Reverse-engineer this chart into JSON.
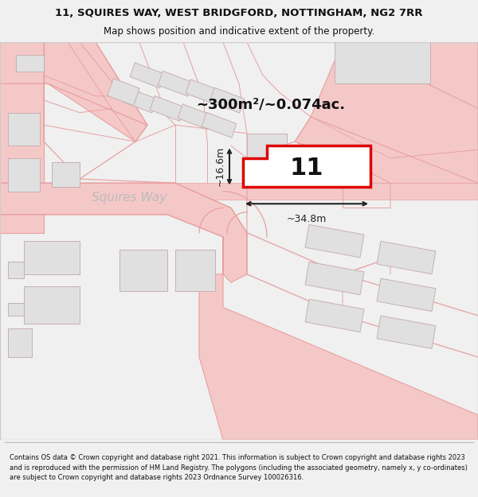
{
  "title_line1": "11, SQUIRES WAY, WEST BRIDGFORD, NOTTINGHAM, NG2 7RR",
  "title_line2": "Map shows position and indicative extent of the property.",
  "footer_text": "Contains OS data © Crown copyright and database right 2021. This information is subject to Crown copyright and database rights 2023 and is reproduced with the permission of HM Land Registry. The polygons (including the associated geometry, namely x, y co-ordinates) are subject to Crown copyright and database rights 2023 Ordnance Survey 100026316.",
  "area_label": "~300m²/~0.074ac.",
  "width_label": "~34.8m",
  "height_label": "~16.6m",
  "property_number": "11",
  "street_label": "Squires Way",
  "bg": "#f0f0f0",
  "map_bg": "#ffffff",
  "road_fill": "#f5c8c8",
  "road_line": "#e8a0a0",
  "building_fill": "#e0e0e0",
  "building_edge": "#c8b0b0",
  "highlight_color": "#dd0000",
  "highlight_fill": "#ffffff",
  "text_color": "#111111",
  "dim_color": "#222222",
  "street_color": "#bbbbbb"
}
